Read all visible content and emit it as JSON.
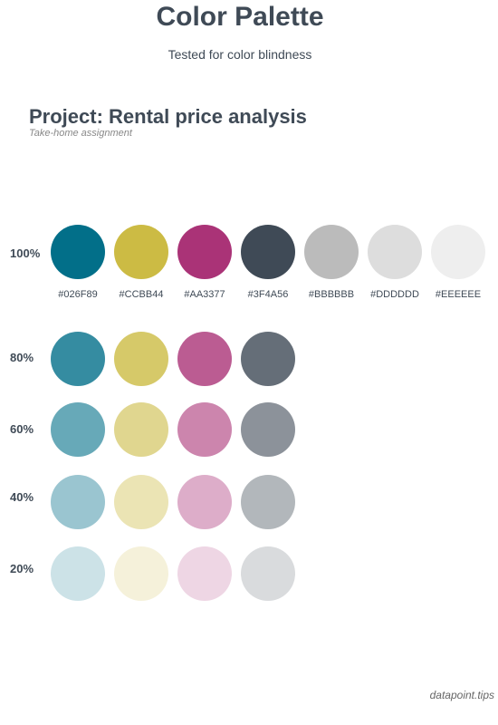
{
  "header": {
    "title": "Color Palette",
    "subtitle": "Tested for color blindness"
  },
  "project": {
    "title": "Project: Rental price analysis",
    "subtitle": "Take-home assignment"
  },
  "palette": [
    {
      "hex_label": "#026F89",
      "color": "#026F89"
    },
    {
      "hex_label": "#CCBB44",
      "color": "#CCBB44"
    },
    {
      "hex_label": "#AA3377",
      "color": "#AA3377"
    },
    {
      "hex_label": "#3F4A56",
      "color": "#3F4A56"
    },
    {
      "hex_label": "#BBBBBB",
      "color": "#BBBBBB"
    },
    {
      "hex_label": "#DDDDDD",
      "color": "#DDDDDD"
    },
    {
      "hex_label": "#EEEEEE",
      "color": "#EEEEEE"
    }
  ],
  "tint_rows": [
    {
      "label": "100%",
      "opacity": 1.0
    },
    {
      "label": "80%",
      "opacity": 0.8
    },
    {
      "label": "60%",
      "opacity": 0.6
    },
    {
      "label": "40%",
      "opacity": 0.4
    },
    {
      "label": "20%",
      "opacity": 0.2
    }
  ],
  "footer": {
    "credit": "datapoint.tips"
  }
}
